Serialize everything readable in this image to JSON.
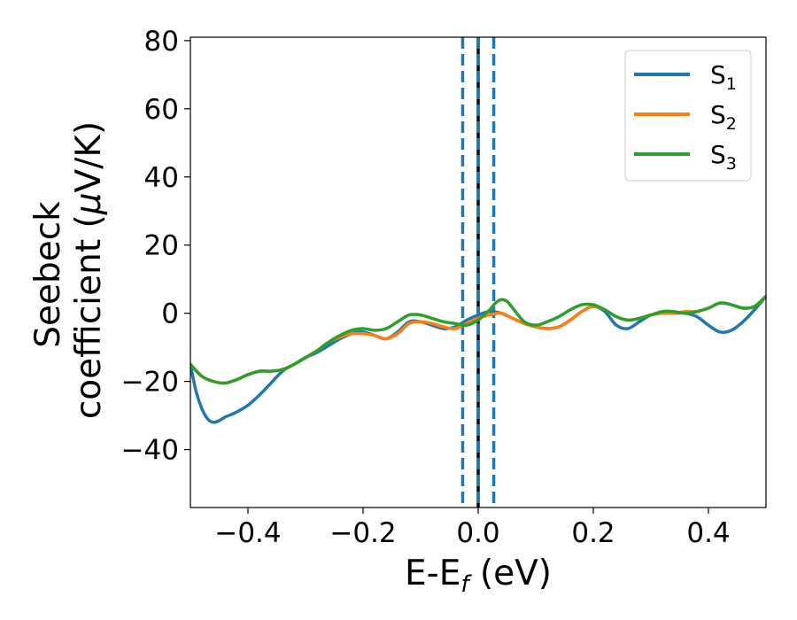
{
  "chart_data": {
    "type": "line",
    "xlabel": {
      "main": "E-E",
      "sub": "f",
      "tail": " (eV)"
    },
    "ylabel": {
      "line1": "Seebeck",
      "line2_text": "coefficient  (",
      "line2_mu": "μ",
      "line2_tail": "V/K)"
    },
    "xlim": [
      -0.5,
      0.5
    ],
    "ylim": [
      -57,
      81
    ],
    "xticks": [
      -0.4,
      -0.2,
      0.0,
      0.2,
      0.4
    ],
    "xtick_labels": [
      "−0.4",
      "−0.2",
      "0.0",
      "0.2",
      "0.4"
    ],
    "yticks": [
      -40,
      -20,
      0,
      20,
      40,
      60,
      80
    ],
    "ytick_labels": [
      "−40",
      "−20",
      "0",
      "20",
      "40",
      "60",
      "80"
    ],
    "grid": false,
    "legend": {
      "placement": "top-right"
    },
    "vlines": [
      {
        "x": -0.027,
        "style": "dashed",
        "color": "#1f77b4"
      },
      {
        "x": 0.0,
        "style": "solid",
        "color": "#000000"
      },
      {
        "x": 0.0,
        "style": "dashed",
        "color": "#1f77b4"
      },
      {
        "x": 0.027,
        "style": "dashed",
        "color": "#1f77b4"
      }
    ],
    "series": [
      {
        "name": "S",
        "sub": "1",
        "color": "#1f77b4",
        "x": [
          -0.5,
          -0.49,
          -0.48,
          -0.47,
          -0.46,
          -0.45,
          -0.44,
          -0.42,
          -0.4,
          -0.38,
          -0.36,
          -0.34,
          -0.32,
          -0.3,
          -0.28,
          -0.26,
          -0.24,
          -0.22,
          -0.2,
          -0.18,
          -0.16,
          -0.14,
          -0.12,
          -0.1,
          -0.08,
          -0.06,
          -0.04,
          -0.02,
          0.0,
          0.02,
          0.04,
          0.06,
          0.08,
          0.1,
          0.12,
          0.14,
          0.16,
          0.18,
          0.2,
          0.22,
          0.24,
          0.26,
          0.28,
          0.3,
          0.32,
          0.34,
          0.36,
          0.38,
          0.4,
          0.42,
          0.44,
          0.46,
          0.48,
          0.5
        ],
        "y": [
          -15,
          -23,
          -28,
          -31,
          -32,
          -31.5,
          -30.5,
          -29,
          -27,
          -24,
          -20.5,
          -17,
          -15,
          -13,
          -11.5,
          -9.5,
          -7.5,
          -6,
          -5.5,
          -6.5,
          -7.5,
          -5.5,
          -2.5,
          -2.5,
          -3.5,
          -4.5,
          -4,
          -2,
          -0.5,
          0.5,
          0,
          -1.5,
          -3,
          -4,
          -4.5,
          -4,
          -2,
          0.5,
          2,
          0.5,
          -3.5,
          -4.5,
          -2.5,
          -0.5,
          0,
          0,
          0,
          -1,
          -3.5,
          -5.5,
          -5,
          -2.5,
          1,
          5
        ]
      },
      {
        "name": "S",
        "sub": "2",
        "color": "#ff7f0e",
        "x": [
          -0.5,
          -0.48,
          -0.46,
          -0.44,
          -0.42,
          -0.4,
          -0.38,
          -0.36,
          -0.34,
          -0.32,
          -0.3,
          -0.28,
          -0.26,
          -0.24,
          -0.22,
          -0.2,
          -0.18,
          -0.16,
          -0.14,
          -0.12,
          -0.1,
          -0.08,
          -0.06,
          -0.04,
          -0.02,
          0.0,
          0.02,
          0.04,
          0.06,
          0.08,
          0.1,
          0.12,
          0.14,
          0.16,
          0.18,
          0.2,
          0.22,
          0.24,
          0.26,
          0.28,
          0.3,
          0.32,
          0.34,
          0.36,
          0.38,
          0.4,
          0.42,
          0.44,
          0.46,
          0.48,
          0.5
        ],
        "y": [
          -15,
          -18.5,
          -20,
          -20.5,
          -19.5,
          -18,
          -17,
          -17,
          -16.5,
          -15,
          -13,
          -11,
          -8.5,
          -7,
          -6,
          -6,
          -6.5,
          -7.5,
          -6,
          -3,
          -2.5,
          -3,
          -4,
          -4.5,
          -3,
          -1.5,
          -0.5,
          0,
          -1.5,
          -3,
          -4,
          -4.5,
          -4,
          -2,
          0.5,
          2,
          1,
          -1,
          -2,
          -1.5,
          -0.5,
          0,
          0,
          0.5,
          0.5,
          1.5,
          3,
          2.5,
          1.5,
          2,
          5
        ]
      },
      {
        "name": "S",
        "sub": "3",
        "color": "#2ca02c",
        "x": [
          -0.5,
          -0.48,
          -0.46,
          -0.44,
          -0.42,
          -0.4,
          -0.38,
          -0.36,
          -0.34,
          -0.32,
          -0.3,
          -0.28,
          -0.26,
          -0.24,
          -0.22,
          -0.2,
          -0.18,
          -0.16,
          -0.14,
          -0.12,
          -0.1,
          -0.08,
          -0.06,
          -0.04,
          -0.02,
          0.0,
          0.02,
          0.03,
          0.04,
          0.05,
          0.06,
          0.08,
          0.1,
          0.12,
          0.14,
          0.16,
          0.18,
          0.2,
          0.22,
          0.24,
          0.26,
          0.28,
          0.3,
          0.32,
          0.34,
          0.36,
          0.38,
          0.4,
          0.42,
          0.44,
          0.46,
          0.48,
          0.5
        ],
        "y": [
          -15,
          -18.5,
          -20,
          -20.5,
          -19.5,
          -18,
          -17,
          -17,
          -16.5,
          -15,
          -13,
          -11,
          -8.5,
          -6.5,
          -5,
          -4.5,
          -5,
          -4.5,
          -2.5,
          -0.5,
          -0.5,
          -1.5,
          -2.5,
          -3,
          -3.5,
          -2,
          1,
          3,
          4,
          3.5,
          1.5,
          -2.5,
          -3.5,
          -2.5,
          -1,
          1,
          2.5,
          2.5,
          1,
          -1,
          -2,
          -1.5,
          -0.5,
          0.5,
          0.5,
          0,
          0.5,
          1.5,
          3,
          2.5,
          1.5,
          2,
          5
        ]
      }
    ]
  }
}
